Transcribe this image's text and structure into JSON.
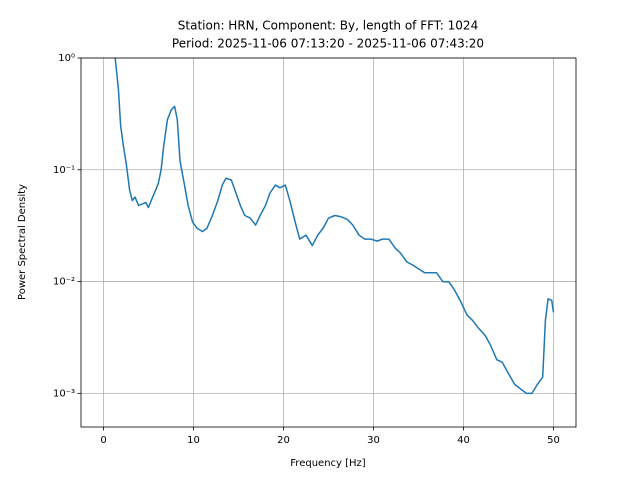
{
  "chart_data": {
    "type": "line",
    "title": "Station: HRN, Component: By, length of FFT: 1024",
    "subtitle": "Period: 2025-11-06 07:13:20 - 2025-11-06 07:43:20",
    "x_label": "Frequency [Hz]",
    "y_label": "Power Spectral Density",
    "yscale": "log",
    "grid": true,
    "xlim": [
      -2.5,
      52.5
    ],
    "xticks": [
      0,
      10,
      20,
      30,
      40,
      50
    ],
    "ylim": [
      0.0005,
      1
    ],
    "yticks": [
      {
        "value": 0.001,
        "label": "10⁻³"
      },
      {
        "value": 0.01,
        "label": "10⁻²"
      },
      {
        "value": 0.1,
        "label": "10⁻¹"
      },
      {
        "value": 1,
        "label": "10⁰"
      }
    ],
    "x": [
      1.3,
      1.66,
      1.9,
      2.2,
      2.55,
      2.9,
      3.2,
      3.5,
      3.9,
      4.2,
      4.7,
      5.0,
      5.3,
      5.8,
      6.1,
      6.4,
      6.7,
      7.1,
      7.5,
      7.9,
      8.2,
      8.5,
      9.0,
      9.4,
      9.9,
      10.4,
      11.0,
      11.5,
      12.1,
      12.7,
      13.2,
      13.6,
      14.2,
      14.6,
      15.2,
      15.7,
      16.3,
      16.9,
      17.4,
      18.0,
      18.5,
      19.1,
      19.6,
      20.2,
      20.7,
      21.3,
      21.8,
      22.5,
      23.2,
      23.8,
      24.4,
      25.0,
      25.7,
      26.4,
      27.1,
      27.7,
      28.4,
      29.0,
      29.7,
      30.4,
      31.0,
      31.7,
      32.4,
      33.0,
      33.7,
      34.4,
      35.0,
      35.7,
      36.4,
      37.0,
      37.7,
      38.4,
      39.0,
      39.7,
      40.4,
      41.0,
      41.7,
      42.4,
      43.0,
      43.7,
      44.3,
      45.0,
      45.7,
      46.3,
      47.0,
      47.6,
      48.2,
      48.8,
      49.1,
      49.4,
      49.8,
      50.0
    ],
    "series": [
      {
        "name": "By",
        "color": "#1f77b4",
        "values": [
          1.0,
          0.52,
          0.25,
          0.166,
          0.11,
          0.066,
          0.053,
          0.057,
          0.048,
          0.049,
          0.051,
          0.046,
          0.053,
          0.066,
          0.076,
          0.1,
          0.166,
          0.28,
          0.34,
          0.37,
          0.28,
          0.12,
          0.073,
          0.048,
          0.034,
          0.03,
          0.028,
          0.03,
          0.039,
          0.053,
          0.073,
          0.084,
          0.081,
          0.066,
          0.048,
          0.039,
          0.037,
          0.032,
          0.039,
          0.048,
          0.062,
          0.073,
          0.069,
          0.073,
          0.053,
          0.034,
          0.024,
          0.026,
          0.021,
          0.026,
          0.03,
          0.037,
          0.039,
          0.038,
          0.036,
          0.032,
          0.026,
          0.024,
          0.024,
          0.023,
          0.024,
          0.024,
          0.02,
          0.018,
          0.015,
          0.014,
          0.013,
          0.012,
          0.012,
          0.012,
          0.01,
          0.0099,
          0.0084,
          0.0066,
          0.005,
          0.0045,
          0.0038,
          0.0033,
          0.0027,
          0.002,
          0.0019,
          0.0015,
          0.0012,
          0.0011,
          0.001,
          0.001,
          0.0012,
          0.0014,
          0.0045,
          0.007,
          0.0068,
          0.0053
        ]
      }
    ]
  }
}
